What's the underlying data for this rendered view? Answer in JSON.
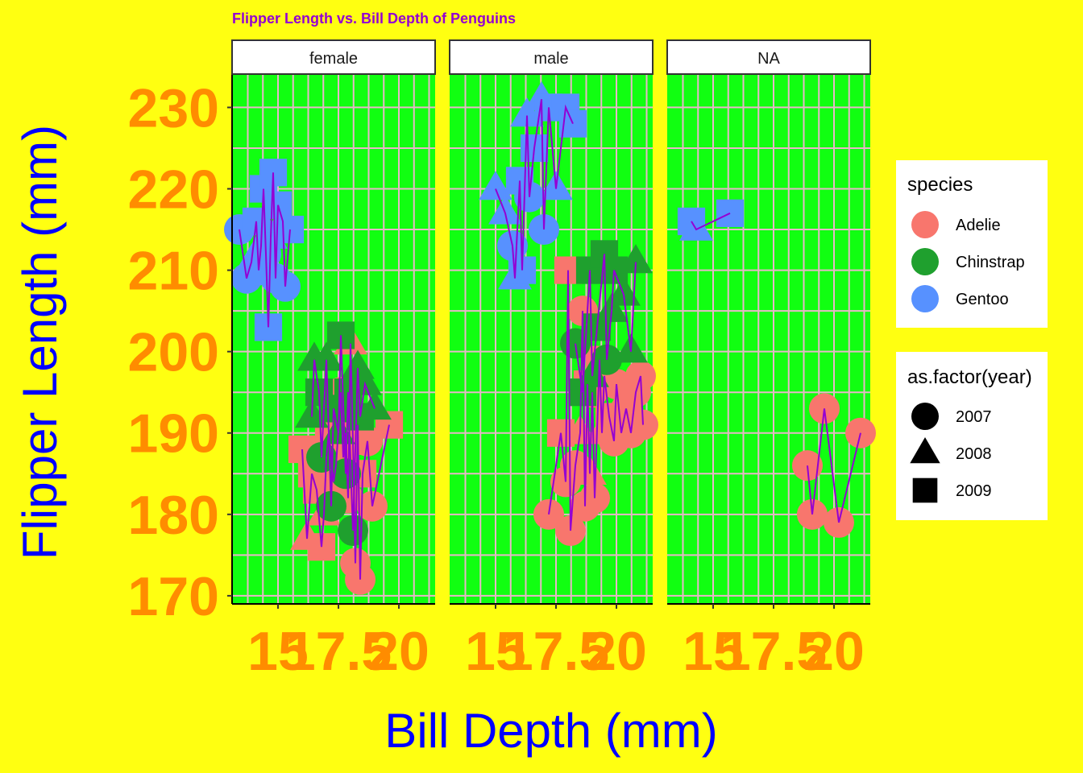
{
  "chart_data": {
    "type": "scatter",
    "title": "Flipper Length vs. Bill Depth of Penguins",
    "xlabel": "Bill Depth (mm)",
    "ylabel": "Flipper Length (mm)",
    "xlim": [
      13.1,
      21.5
    ],
    "ylim": [
      169,
      234
    ],
    "x_ticks": [
      15,
      17.5,
      20
    ],
    "x_tick_labels": [
      "15",
      "17.5",
      "20"
    ],
    "y_ticks": [
      170,
      180,
      190,
      200,
      210,
      220,
      230
    ],
    "y_tick_labels": [
      "170",
      "180",
      "190",
      "200",
      "210",
      "220",
      "230"
    ],
    "grid": true,
    "legend_position": "right",
    "facets": [
      "female",
      "male",
      "NA"
    ],
    "legend_species": {
      "title": "species",
      "items": [
        {
          "label": "Adelie",
          "color": "#f8766d"
        },
        {
          "label": "Chinstrap",
          "color": "#1fa02e"
        },
        {
          "label": "Gentoo",
          "color": "#5791ff"
        }
      ]
    },
    "legend_year": {
      "title": "as.factor(year)",
      "items": [
        {
          "label": "2007",
          "shape": "circle"
        },
        {
          "label": "2008",
          "shape": "triangle"
        },
        {
          "label": "2009",
          "shape": "square"
        }
      ]
    },
    "panels": [
      {
        "facet": "female",
        "points": [
          {
            "species": "Gentoo",
            "year": 2007,
            "x": 13.4,
            "y": 215
          },
          {
            "species": "Gentoo",
            "year": 2007,
            "x": 13.7,
            "y": 209
          },
          {
            "species": "Gentoo",
            "year": 2008,
            "x": 13.9,
            "y": 211
          },
          {
            "species": "Gentoo",
            "year": 2009,
            "x": 14.1,
            "y": 216
          },
          {
            "species": "Gentoo",
            "year": 2007,
            "x": 14.2,
            "y": 210
          },
          {
            "species": "Gentoo",
            "year": 2008,
            "x": 14.3,
            "y": 213
          },
          {
            "species": "Gentoo",
            "year": 2009,
            "x": 14.4,
            "y": 220
          },
          {
            "species": "Gentoo",
            "year": 2007,
            "x": 14.5,
            "y": 212
          },
          {
            "species": "Gentoo",
            "year": 2009,
            "x": 14.6,
            "y": 203
          },
          {
            "species": "Gentoo",
            "year": 2008,
            "x": 14.7,
            "y": 214
          },
          {
            "species": "Gentoo",
            "year": 2009,
            "x": 14.8,
            "y": 222
          },
          {
            "species": "Gentoo",
            "year": 2007,
            "x": 14.9,
            "y": 209
          },
          {
            "species": "Gentoo",
            "year": 2009,
            "x": 15.0,
            "y": 218
          },
          {
            "species": "Gentoo",
            "year": 2008,
            "x": 15.2,
            "y": 216
          },
          {
            "species": "Gentoo",
            "year": 2009,
            "x": 15.5,
            "y": 215
          },
          {
            "species": "Gentoo",
            "year": 2007,
            "x": 15.3,
            "y": 208
          },
          {
            "species": "Adelie",
            "year": 2009,
            "x": 16.0,
            "y": 188
          },
          {
            "species": "Adelie",
            "year": 2008,
            "x": 16.2,
            "y": 177
          },
          {
            "species": "Adelie",
            "year": 2009,
            "x": 16.4,
            "y": 185
          },
          {
            "species": "Adelie",
            "year": 2009,
            "x": 16.6,
            "y": 183
          },
          {
            "species": "Adelie",
            "year": 2009,
            "x": 16.8,
            "y": 176
          },
          {
            "species": "Adelie",
            "year": 2008,
            "x": 16.9,
            "y": 180
          },
          {
            "species": "Adelie",
            "year": 2007,
            "x": 17.0,
            "y": 187
          },
          {
            "species": "Adelie",
            "year": 2009,
            "x": 17.1,
            "y": 190
          },
          {
            "species": "Adelie",
            "year": 2007,
            "x": 17.3,
            "y": 184
          },
          {
            "species": "Adelie",
            "year": 2008,
            "x": 17.4,
            "y": 186
          },
          {
            "species": "Adelie",
            "year": 2007,
            "x": 17.6,
            "y": 195
          },
          {
            "species": "Adelie",
            "year": 2009,
            "x": 17.7,
            "y": 187
          },
          {
            "species": "Adelie",
            "year": 2008,
            "x": 17.8,
            "y": 190
          },
          {
            "species": "Adelie",
            "year": 2007,
            "x": 17.9,
            "y": 182
          },
          {
            "species": "Adelie",
            "year": 2008,
            "x": 18.0,
            "y": 201
          },
          {
            "species": "Adelie",
            "year": 2009,
            "x": 18.1,
            "y": 189
          },
          {
            "species": "Adelie",
            "year": 2007,
            "x": 18.2,
            "y": 174
          },
          {
            "species": "Adelie",
            "year": 2008,
            "x": 18.3,
            "y": 191
          },
          {
            "species": "Adelie",
            "year": 2007,
            "x": 18.4,
            "y": 172
          },
          {
            "species": "Adelie",
            "year": 2009,
            "x": 18.5,
            "y": 185
          },
          {
            "species": "Adelie",
            "year": 2007,
            "x": 18.7,
            "y": 189
          },
          {
            "species": "Adelie",
            "year": 2007,
            "x": 18.9,
            "y": 181
          },
          {
            "species": "Adelie",
            "year": 2009,
            "x": 19.6,
            "y": 191
          },
          {
            "species": "Chinstrap",
            "year": 2008,
            "x": 16.4,
            "y": 192
          },
          {
            "species": "Chinstrap",
            "year": 2008,
            "x": 16.5,
            "y": 199
          },
          {
            "species": "Chinstrap",
            "year": 2009,
            "x": 16.7,
            "y": 195
          },
          {
            "species": "Chinstrap",
            "year": 2007,
            "x": 16.8,
            "y": 187
          },
          {
            "species": "Chinstrap",
            "year": 2008,
            "x": 17.0,
            "y": 199
          },
          {
            "species": "Chinstrap",
            "year": 2007,
            "x": 17.2,
            "y": 181
          },
          {
            "species": "Chinstrap",
            "year": 2009,
            "x": 17.3,
            "y": 193
          },
          {
            "species": "Chinstrap",
            "year": 2008,
            "x": 17.5,
            "y": 190
          },
          {
            "species": "Chinstrap",
            "year": 2009,
            "x": 17.6,
            "y": 202
          },
          {
            "species": "Chinstrap",
            "year": 2007,
            "x": 17.8,
            "y": 185
          },
          {
            "species": "Chinstrap",
            "year": 2009,
            "x": 17.9,
            "y": 195
          },
          {
            "species": "Chinstrap",
            "year": 2007,
            "x": 18.1,
            "y": 178
          },
          {
            "species": "Chinstrap",
            "year": 2008,
            "x": 18.3,
            "y": 198
          },
          {
            "species": "Chinstrap",
            "year": 2009,
            "x": 18.4,
            "y": 192
          },
          {
            "species": "Chinstrap",
            "year": 2008,
            "x": 18.6,
            "y": 196
          },
          {
            "species": "Chinstrap",
            "year": 2008,
            "x": 19.0,
            "y": 193
          }
        ]
      },
      {
        "facet": "male",
        "points": [
          {
            "species": "Gentoo",
            "year": 2008,
            "x": 15.0,
            "y": 220
          },
          {
            "species": "Gentoo",
            "year": 2008,
            "x": 15.4,
            "y": 217
          },
          {
            "species": "Gentoo",
            "year": 2007,
            "x": 15.7,
            "y": 213
          },
          {
            "species": "Gentoo",
            "year": 2008,
            "x": 15.8,
            "y": 209
          },
          {
            "species": "Gentoo",
            "year": 2009,
            "x": 16.0,
            "y": 221
          },
          {
            "species": "Gentoo",
            "year": 2009,
            "x": 16.1,
            "y": 210
          },
          {
            "species": "Gentoo",
            "year": 2008,
            "x": 16.3,
            "y": 229
          },
          {
            "species": "Gentoo",
            "year": 2007,
            "x": 16.4,
            "y": 219
          },
          {
            "species": "Gentoo",
            "year": 2009,
            "x": 16.6,
            "y": 225
          },
          {
            "species": "Gentoo",
            "year": 2008,
            "x": 16.9,
            "y": 231
          },
          {
            "species": "Gentoo",
            "year": 2007,
            "x": 17.0,
            "y": 215
          },
          {
            "species": "Gentoo",
            "year": 2009,
            "x": 17.2,
            "y": 230
          },
          {
            "species": "Gentoo",
            "year": 2008,
            "x": 17.5,
            "y": 220
          },
          {
            "species": "Gentoo",
            "year": 2009,
            "x": 17.9,
            "y": 230
          },
          {
            "species": "Gentoo",
            "year": 2009,
            "x": 18.2,
            "y": 228
          },
          {
            "species": "Adelie",
            "year": 2007,
            "x": 17.2,
            "y": 180
          },
          {
            "species": "Adelie",
            "year": 2009,
            "x": 17.7,
            "y": 190
          },
          {
            "species": "Adelie",
            "year": 2007,
            "x": 17.9,
            "y": 184
          },
          {
            "species": "Adelie",
            "year": 2009,
            "x": 18.0,
            "y": 210
          },
          {
            "species": "Adelie",
            "year": 2007,
            "x": 18.1,
            "y": 178
          },
          {
            "species": "Adelie",
            "year": 2007,
            "x": 18.3,
            "y": 186
          },
          {
            "species": "Adelie",
            "year": 2008,
            "x": 18.5,
            "y": 190
          },
          {
            "species": "Adelie",
            "year": 2007,
            "x": 18.6,
            "y": 205
          },
          {
            "species": "Adelie",
            "year": 2007,
            "x": 18.7,
            "y": 181
          },
          {
            "species": "Adelie",
            "year": 2009,
            "x": 18.8,
            "y": 196
          },
          {
            "species": "Adelie",
            "year": 2008,
            "x": 18.9,
            "y": 185
          },
          {
            "species": "Adelie",
            "year": 2007,
            "x": 19.0,
            "y": 195
          },
          {
            "species": "Adelie",
            "year": 2007,
            "x": 19.1,
            "y": 182
          },
          {
            "species": "Adelie",
            "year": 2009,
            "x": 19.3,
            "y": 199
          },
          {
            "species": "Adelie",
            "year": 2008,
            "x": 19.4,
            "y": 190
          },
          {
            "species": "Adelie",
            "year": 2007,
            "x": 19.5,
            "y": 197
          },
          {
            "species": "Adelie",
            "year": 2009,
            "x": 19.7,
            "y": 192
          },
          {
            "species": "Adelie",
            "year": 2007,
            "x": 19.9,
            "y": 189
          },
          {
            "species": "Adelie",
            "year": 2007,
            "x": 20.0,
            "y": 196
          },
          {
            "species": "Adelie",
            "year": 2007,
            "x": 20.2,
            "y": 190
          },
          {
            "species": "Adelie",
            "year": 2007,
            "x": 20.4,
            "y": 193
          },
          {
            "species": "Adelie",
            "year": 2007,
            "x": 20.6,
            "y": 190
          },
          {
            "species": "Adelie",
            "year": 2007,
            "x": 20.8,
            "y": 195
          },
          {
            "species": "Adelie",
            "year": 2007,
            "x": 21.0,
            "y": 197
          },
          {
            "species": "Adelie",
            "year": 2007,
            "x": 21.1,
            "y": 191
          },
          {
            "species": "Chinstrap",
            "year": 2007,
            "x": 18.3,
            "y": 201
          },
          {
            "species": "Chinstrap",
            "year": 2009,
            "x": 18.6,
            "y": 195
          },
          {
            "species": "Chinstrap",
            "year": 2009,
            "x": 18.9,
            "y": 210
          },
          {
            "species": "Chinstrap",
            "year": 2008,
            "x": 19.0,
            "y": 197
          },
          {
            "species": "Chinstrap",
            "year": 2009,
            "x": 19.2,
            "y": 203
          },
          {
            "species": "Chinstrap",
            "year": 2009,
            "x": 19.5,
            "y": 212
          },
          {
            "species": "Chinstrap",
            "year": 2007,
            "x": 19.6,
            "y": 199
          },
          {
            "species": "Chinstrap",
            "year": 2008,
            "x": 19.8,
            "y": 205
          },
          {
            "species": "Chinstrap",
            "year": 2009,
            "x": 19.9,
            "y": 210
          },
          {
            "species": "Chinstrap",
            "year": 2008,
            "x": 20.3,
            "y": 207
          },
          {
            "species": "Chinstrap",
            "year": 2008,
            "x": 20.6,
            "y": 200
          },
          {
            "species": "Chinstrap",
            "year": 2008,
            "x": 20.8,
            "y": 211
          }
        ]
      },
      {
        "facet": "NA",
        "points": [
          {
            "species": "Gentoo",
            "year": 2009,
            "x": 14.1,
            "y": 216
          },
          {
            "species": "Gentoo",
            "year": 2008,
            "x": 14.3,
            "y": 215
          },
          {
            "species": "Gentoo",
            "year": 2009,
            "x": 15.7,
            "y": 217
          },
          {
            "species": "Adelie",
            "year": 2007,
            "x": 18.9,
            "y": 186
          },
          {
            "species": "Adelie",
            "year": 2007,
            "x": 19.1,
            "y": 180
          },
          {
            "species": "Adelie",
            "year": 2007,
            "x": 19.6,
            "y": 193
          },
          {
            "species": "Adelie",
            "year": 2007,
            "x": 20.2,
            "y": 179
          },
          {
            "species": "Adelie",
            "year": 2007,
            "x": 21.1,
            "y": 190
          }
        ]
      }
    ]
  }
}
